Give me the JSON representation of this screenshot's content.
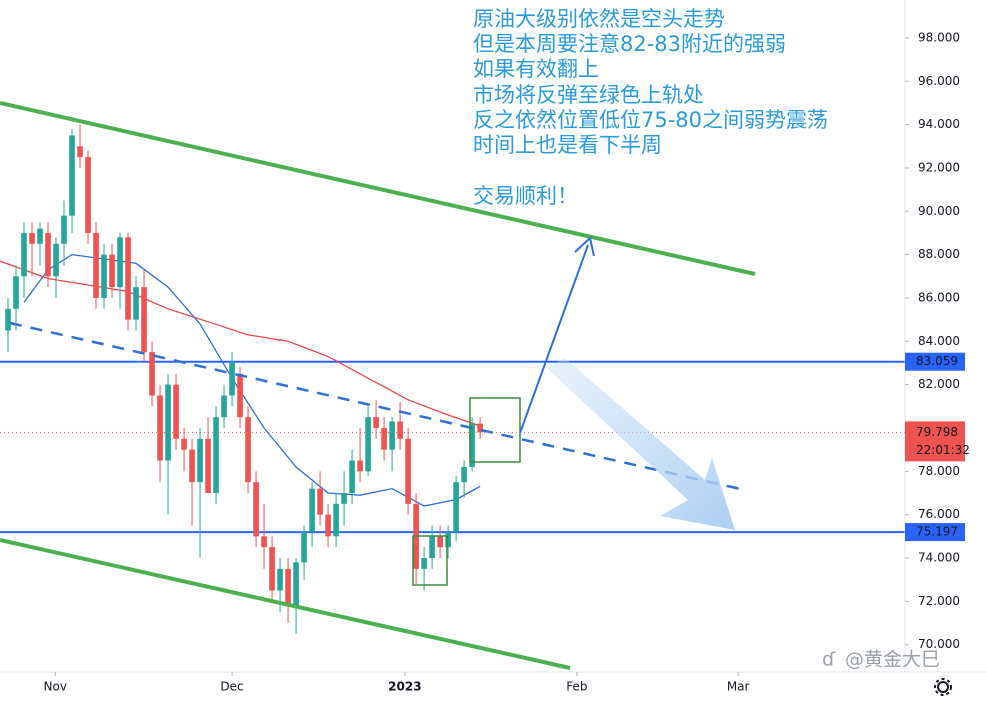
{
  "chart_data": {
    "type": "candlestick",
    "annotation_lines": [
      "原油大级别依然是空头走势",
      "但是本周要注意82-83附近的强弱",
      "如果有效翻上",
      "市场将反弹至绿色上轨处",
      "反之依然位置低位75-80之间弱势震荡",
      "时间上也是看下半周"
    ],
    "annotation_footer": "交易顺利！",
    "watermark": "@黄金大巳",
    "x": [
      0,
      1,
      2,
      3,
      4,
      5,
      6,
      7,
      8,
      9,
      10,
      11,
      12,
      13,
      14,
      15,
      16,
      17,
      18,
      19,
      20,
      21,
      22,
      23,
      24,
      25,
      26,
      27,
      28,
      29,
      30,
      31,
      32,
      33,
      34,
      35,
      36,
      37,
      38,
      39,
      40,
      41,
      42,
      43,
      44,
      45,
      46,
      47,
      48,
      49,
      50,
      51,
      52,
      53,
      54,
      55,
      56,
      57,
      58,
      59
    ],
    "open": [
      84.5,
      85.5,
      87,
      89,
      88.5,
      89,
      87,
      88.5,
      89.8,
      93,
      92.5,
      89,
      86,
      88,
      86.5,
      88.8,
      85,
      86.5,
      83.5,
      81.5,
      78.5,
      82,
      79.5,
      79,
      77.5,
      79.5,
      77,
      80.5,
      81.5,
      82.5,
      80.5,
      77.5,
      75,
      74.5,
      72.5,
      73.5,
      71.8,
      73.8,
      75.2,
      77.2,
      76,
      75,
      76.5,
      77,
      78.5,
      78,
      80.5,
      80,
      79,
      80.3,
      79.5,
      76.5,
      73.5,
      74,
      75,
      74.5,
      75.2,
      77.5,
      78.2,
      80.2
    ],
    "high": [
      86,
      87.5,
      89.5,
      89.5,
      89.5,
      89.5,
      88.8,
      90.5,
      93.8,
      94,
      92.8,
      89.5,
      88.5,
      88.5,
      89,
      89,
      87,
      87.3,
      84,
      82,
      82.5,
      82.5,
      80,
      79.5,
      80,
      80.5,
      81,
      82,
      83.5,
      82.8,
      81,
      78,
      76.5,
      75,
      74,
      74,
      74,
      75.5,
      77.5,
      78,
      76.5,
      77,
      78,
      79,
      80,
      81,
      81.3,
      80.5,
      80.5,
      81.2,
      80,
      77,
      74.5,
      75.5,
      75.5,
      75.5,
      77.8,
      78.5,
      80.5,
      80.5
    ],
    "low": [
      83.5,
      84.5,
      86,
      87,
      87.5,
      86.5,
      86,
      87.5,
      89,
      92,
      88.5,
      85.5,
      85.5,
      86,
      85.5,
      84.5,
      84.5,
      83,
      81,
      77.5,
      76,
      79,
      78,
      75.5,
      74,
      77,
      76.5,
      80,
      81,
      80,
      77,
      74.5,
      73.5,
      72,
      71.5,
      71,
      70.5,
      73,
      74.5,
      75.5,
      74.5,
      74.5,
      75.5,
      76.5,
      77.5,
      77.8,
      79.5,
      78.5,
      78,
      79,
      76,
      72.8,
      72.5,
      73.5,
      74,
      74,
      74.8,
      76.8,
      78,
      79.5
    ],
    "close": [
      85.5,
      87,
      89,
      88.5,
      89.2,
      87,
      88.5,
      89.8,
      93.5,
      92.5,
      89,
      86,
      88,
      86.5,
      88.8,
      85,
      86.5,
      83.5,
      81.5,
      78.5,
      82,
      79.5,
      79,
      77.5,
      79.5,
      77,
      80.5,
      81.5,
      83,
      80.5,
      77.5,
      75,
      74.5,
      72.5,
      73.5,
      71.8,
      73.8,
      75.2,
      77.2,
      76,
      75,
      76.5,
      77,
      78.5,
      78,
      80.5,
      80,
      79,
      80.3,
      79.5,
      76.5,
      73.5,
      74,
      75,
      74.5,
      75.2,
      77.5,
      78.2,
      80.2,
      79.8
    ],
    "up_color": "#26a69a",
    "down_color": "#ef5350",
    "moving_averages": [
      {
        "color": "#e8484a",
        "x": [
          -1,
          5,
          10,
          15,
          20,
          25,
          30,
          35,
          40,
          45,
          50,
          55,
          59
        ],
        "values": [
          87.7,
          86.9,
          86.6,
          86.3,
          85.5,
          84.9,
          84.3,
          84.0,
          83.3,
          82.3,
          81.3,
          80.6,
          80.1
        ]
      },
      {
        "color": "#2f6fd6",
        "x": [
          2,
          5,
          8,
          12,
          16,
          20,
          24,
          28,
          32,
          36,
          40,
          44,
          48,
          52,
          56,
          59
        ],
        "values": [
          85.8,
          87.3,
          88.0,
          87.8,
          87.6,
          86.5,
          84.8,
          82.3,
          80.0,
          78.2,
          77.0,
          76.9,
          77.2,
          76.4,
          76.7,
          77.3
        ]
      }
    ],
    "price_lines": [
      {
        "value": 83.059,
        "color": "#2962ff"
      },
      {
        "value": 75.197,
        "color": "#2962ff"
      }
    ],
    "last_price": 79.798,
    "last_color": "#ef5350",
    "countdown": "22:01:32",
    "xlim": [
      -1,
      112.1
    ],
    "xticks": [
      {
        "value": 5.9,
        "label": "Nov"
      },
      {
        "value": 28,
        "label": "Dec"
      },
      {
        "value": 49.6,
        "label": "2023"
      },
      {
        "value": 71.1,
        "label": "Feb"
      },
      {
        "value": 91.25,
        "label": "Mar"
      }
    ],
    "ylim": [
      68.74,
      99.75
    ],
    "yticks": [
      {
        "value": 70,
        "label": "70.000"
      },
      {
        "value": 72,
        "label": "72.000"
      },
      {
        "value": 74,
        "label": "74.000"
      },
      {
        "value": 76,
        "label": "76.000"
      },
      {
        "value": 78,
        "label": "78.000"
      },
      {
        "value": 80,
        "label": "80.000"
      },
      {
        "value": 82,
        "label": "82.000"
      },
      {
        "value": 84,
        "label": "84.000"
      },
      {
        "value": 86,
        "label": "86.000"
      },
      {
        "value": 88,
        "label": "88.000"
      },
      {
        "value": 90,
        "label": "90.000"
      },
      {
        "value": 92,
        "label": "92.000"
      },
      {
        "value": 94,
        "label": "94.000"
      },
      {
        "value": 96,
        "label": "96.000"
      },
      {
        "value": 98,
        "label": "98.000"
      }
    ]
  }
}
